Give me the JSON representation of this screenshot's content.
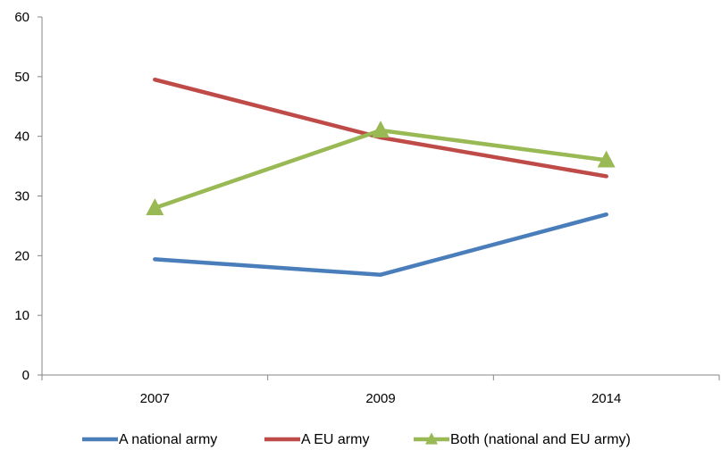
{
  "chart_data": {
    "type": "line",
    "categories": [
      "2007",
      "2009",
      "2014"
    ],
    "ylim": [
      0,
      60
    ],
    "yticks": [
      "0",
      "10",
      "20",
      "30",
      "40",
      "50",
      "60"
    ],
    "grid": false,
    "legend_position": "bottom",
    "series": [
      {
        "name": "A national army",
        "values": [
          19.4,
          16.8,
          26.9
        ],
        "color": "#4a7ebb",
        "marker": "none"
      },
      {
        "name": "A EU army",
        "values": [
          49.5,
          39.8,
          33.3
        ],
        "color": "#be4b48",
        "marker": "none"
      },
      {
        "name": "Both (national and EU army)",
        "values": [
          28.0,
          41.0,
          36.0
        ],
        "color": "#98b954",
        "marker": "triangle"
      }
    ]
  }
}
